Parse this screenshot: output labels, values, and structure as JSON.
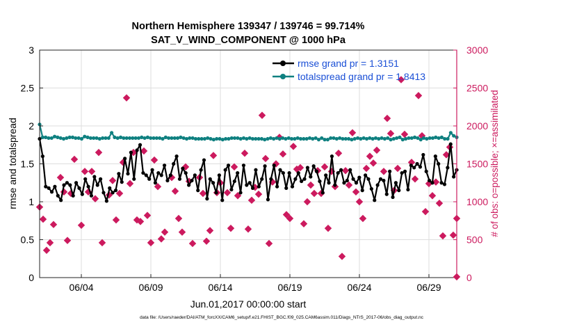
{
  "chart_data": {
    "type": "line",
    "title": "Northern Hemisphere 139347 / 139746 = 99.714%",
    "subtitle": "SAT_V_WIND_COMPONENT @ 1000 hPa",
    "xlabel": "Jun.01,2017 00:00:00 start",
    "ylabel": "rmse and totalspread",
    "y2label": "# of obs: o=possible; ×=assimilated",
    "footer": "data file: /Users/raeder/DAI/ATM_forcXX/CAM6_setup/f.e21.FHIST_BGC.f09_025.CAM6assim.011/Diags_NTrS_2017-06/obs_diag_output.nc",
    "xlim": [
      1.0,
      31.0
    ],
    "ylim": [
      0,
      3
    ],
    "y2lim": [
      0,
      3000
    ],
    "xticks": [
      4,
      9,
      14,
      19,
      24,
      29
    ],
    "xtick_labels": [
      "06/04",
      "06/09",
      "06/14",
      "06/19",
      "06/24",
      "06/29"
    ],
    "yticks": [
      0,
      0.5,
      1,
      1.5,
      2,
      2.5,
      3
    ],
    "ytick_labels": [
      "0",
      "0.5",
      "1",
      "1.5",
      "2",
      "2.5",
      "3"
    ],
    "y2ticks": [
      0,
      500,
      1000,
      1500,
      2000,
      2500,
      3000
    ],
    "y2tick_labels": [
      "0",
      "500",
      "1000",
      "1500",
      "2000",
      "2500",
      "3000"
    ],
    "legend_position": "top-right",
    "colors": {
      "rmse": "#000000",
      "spread": "#0f8080",
      "obs": "#cc1a5e",
      "legend_text": "#1a4fd6",
      "left_axis": "#000000",
      "right_axis": "#cc1a5e"
    },
    "series": [
      {
        "name": "rmse grand pr = 1.3151",
        "axis": "left",
        "values": [
          1.83,
          1.6,
          1.2,
          1.18,
          1.13,
          1.2,
          1.08,
          1.02,
          1.22,
          1.25,
          1.22,
          1.08,
          1.25,
          1.18,
          1.1,
          1.3,
          1.2,
          1.08,
          1.33,
          1.22,
          1.3,
          1.12,
          1.01,
          1.18,
          1.12,
          1.15,
          1.37,
          1.26,
          1.57,
          1.37,
          1.65,
          1.3,
          1.68,
          1.75,
          1.38,
          1.35,
          1.3,
          1.42,
          1.25,
          1.38,
          1.35,
          1.48,
          1.28,
          1.35,
          1.5,
          1.6,
          1.3,
          1.44,
          1.38,
          1.22,
          1.28,
          1.35,
          1.15,
          1.42,
          1.55,
          1.04,
          1.3,
          1.25,
          1.12,
          1.35,
          1.02,
          1.42,
          1.48,
          1.16,
          1.27,
          1.38,
          1.12,
          1.48,
          1.22,
          1.25,
          1.18,
          1.42,
          1.2,
          1.3,
          1.47,
          1.03,
          1.3,
          1.48,
          1.2,
          1.42,
          1.38,
          1.18,
          1.38,
          1.2,
          1.3,
          1.38,
          1.27,
          1.3,
          1.45,
          1.33,
          1.47,
          1.4,
          1.27,
          1.12,
          1.35,
          1.25,
          1.6,
          1.22,
          1.38,
          1.42,
          1.25,
          1.28,
          1.42,
          1.3,
          1.25,
          1.32,
          1.15,
          1.35,
          1.3,
          1.17,
          1.02,
          1.22,
          1.3,
          1.28,
          1.1,
          1.4,
          1.06,
          1.25,
          1.15,
          1.38,
          1.4,
          1.16,
          1.48,
          1.45,
          1.5,
          1.46,
          1.62,
          1.4,
          1.28,
          1.25,
          1.6,
          1.5,
          1.25,
          1.23,
          1.45,
          1.76,
          1.33,
          1.42
        ]
      },
      {
        "name": "totalspread grand pr = 1.8413",
        "axis": "left",
        "values": [
          2.02,
          1.85,
          1.85,
          1.84,
          1.84,
          1.86,
          1.85,
          1.84,
          1.83,
          1.84,
          1.85,
          1.85,
          1.84,
          1.84,
          1.83,
          1.86,
          1.85,
          1.84,
          1.84,
          1.84,
          1.83,
          1.84,
          1.84,
          1.84,
          1.91,
          1.85,
          1.84,
          1.85,
          1.84,
          1.84,
          1.84,
          1.84,
          1.84,
          1.84,
          1.85,
          1.84,
          1.85,
          1.84,
          1.84,
          1.84,
          1.84,
          1.83,
          1.85,
          1.84,
          1.84,
          1.84,
          1.84,
          1.85,
          1.84,
          1.83,
          1.84,
          1.84,
          1.83,
          1.83,
          1.83,
          1.83,
          1.84,
          1.83,
          1.82,
          1.83,
          1.83,
          1.82,
          1.83,
          1.83,
          1.84,
          1.84,
          1.84,
          1.83,
          1.84,
          1.83,
          1.84,
          1.83,
          1.83,
          1.83,
          1.83,
          1.82,
          1.83,
          1.84,
          1.83,
          1.84,
          1.83,
          1.84,
          1.83,
          1.84,
          1.83,
          1.83,
          1.84,
          1.83,
          1.83,
          1.83,
          1.84,
          1.83,
          1.84,
          1.82,
          1.84,
          1.82,
          1.82,
          1.84,
          1.84,
          1.83,
          1.84,
          1.83,
          1.83,
          1.83,
          1.82,
          1.83,
          1.84,
          1.83,
          1.84,
          1.83,
          1.84,
          1.83,
          1.84,
          1.83,
          1.84,
          1.83,
          1.84,
          1.82,
          1.83,
          1.84,
          1.85,
          1.82,
          1.83,
          1.84,
          1.84,
          1.85,
          1.84,
          1.82,
          1.84,
          1.83,
          1.84,
          1.84,
          1.85,
          1.84,
          1.85,
          1.83,
          1.83,
          1.91,
          1.87,
          1.85
        ]
      },
      {
        "name": "obs_assimilated",
        "axis": "right",
        "points": [
          [
            1.0,
            930
          ],
          [
            1.25,
            770
          ],
          [
            1.5,
            360
          ],
          [
            1.75,
            460
          ],
          [
            2.0,
            700
          ],
          [
            2.5,
            1320
          ],
          [
            2.75,
            1130
          ],
          [
            3.0,
            490
          ],
          [
            3.25,
            1110
          ],
          [
            3.5,
            1560
          ],
          [
            4.0,
            690
          ],
          [
            4.25,
            1400
          ],
          [
            4.5,
            1130
          ],
          [
            4.75,
            1400
          ],
          [
            5.0,
            1040
          ],
          [
            5.25,
            1650
          ],
          [
            5.5,
            460
          ],
          [
            6.0,
            1090
          ],
          [
            6.25,
            1280
          ],
          [
            6.5,
            760
          ],
          [
            6.75,
            1110
          ],
          [
            7.0,
            1520
          ],
          [
            7.25,
            2370
          ],
          [
            7.5,
            1240
          ],
          [
            7.75,
            1650
          ],
          [
            8.0,
            760
          ],
          [
            8.25,
            740
          ],
          [
            8.5,
            1670
          ],
          [
            8.75,
            820
          ],
          [
            9.0,
            460
          ],
          [
            9.25,
            1550
          ],
          [
            9.5,
            1200
          ],
          [
            9.75,
            510
          ],
          [
            10.0,
            600
          ],
          [
            10.5,
            1320
          ],
          [
            10.75,
            1140
          ],
          [
            11.0,
            780
          ],
          [
            11.25,
            600
          ],
          [
            11.5,
            1460
          ],
          [
            11.75,
            1270
          ],
          [
            12.0,
            450
          ],
          [
            12.5,
            1320
          ],
          [
            12.75,
            1110
          ],
          [
            13.0,
            480
          ],
          [
            13.25,
            620
          ],
          [
            13.5,
            1610
          ],
          [
            13.75,
            1120
          ],
          [
            14.0,
            1250
          ],
          [
            14.5,
            1120
          ],
          [
            14.75,
            650
          ],
          [
            15.0,
            1460
          ],
          [
            15.25,
            1080
          ],
          [
            15.75,
            1640
          ],
          [
            16.0,
            640
          ],
          [
            16.25,
            1020
          ],
          [
            16.5,
            1190
          ],
          [
            16.75,
            1100
          ],
          [
            17.0,
            2140
          ],
          [
            17.25,
            1570
          ],
          [
            17.5,
            450
          ],
          [
            17.75,
            1260
          ],
          [
            18.0,
            1500
          ],
          [
            18.25,
            1850
          ],
          [
            18.5,
            1630
          ],
          [
            18.75,
            830
          ],
          [
            19.0,
            780
          ],
          [
            19.25,
            1730
          ],
          [
            19.5,
            1430
          ],
          [
            19.75,
            1450
          ],
          [
            20.0,
            710
          ],
          [
            20.25,
            1000
          ],
          [
            20.5,
            1220
          ],
          [
            20.75,
            1110
          ],
          [
            21.0,
            1410
          ],
          [
            21.25,
            1110
          ],
          [
            21.5,
            1460
          ],
          [
            21.75,
            650
          ],
          [
            22.0,
            1400
          ],
          [
            22.25,
            1200
          ],
          [
            22.5,
            1640
          ],
          [
            22.75,
            280
          ],
          [
            23.0,
            1410
          ],
          [
            23.25,
            1220
          ],
          [
            23.5,
            1910
          ],
          [
            23.75,
            1130
          ],
          [
            24.0,
            1000
          ],
          [
            24.25,
            780
          ],
          [
            24.5,
            1440
          ],
          [
            24.75,
            1600
          ],
          [
            25.0,
            1510
          ],
          [
            25.25,
            1680
          ],
          [
            25.75,
            1400
          ],
          [
            26.0,
            2100
          ],
          [
            26.25,
            1900
          ],
          [
            26.5,
            1150
          ],
          [
            26.75,
            1440
          ],
          [
            27.0,
            2610
          ],
          [
            27.25,
            1890
          ],
          [
            27.75,
            1520
          ],
          [
            28.0,
            1300
          ],
          [
            28.25,
            2400
          ],
          [
            28.5,
            1870
          ],
          [
            28.75,
            870
          ],
          [
            29.0,
            1240
          ],
          [
            29.25,
            1080
          ],
          [
            29.5,
            1260
          ],
          [
            29.75,
            980
          ],
          [
            30.0,
            550
          ],
          [
            30.25,
            1620
          ],
          [
            30.5,
            1720
          ],
          [
            30.75,
            560
          ],
          [
            31.0,
            780
          ],
          [
            31.25,
            10
          ]
        ]
      }
    ]
  }
}
